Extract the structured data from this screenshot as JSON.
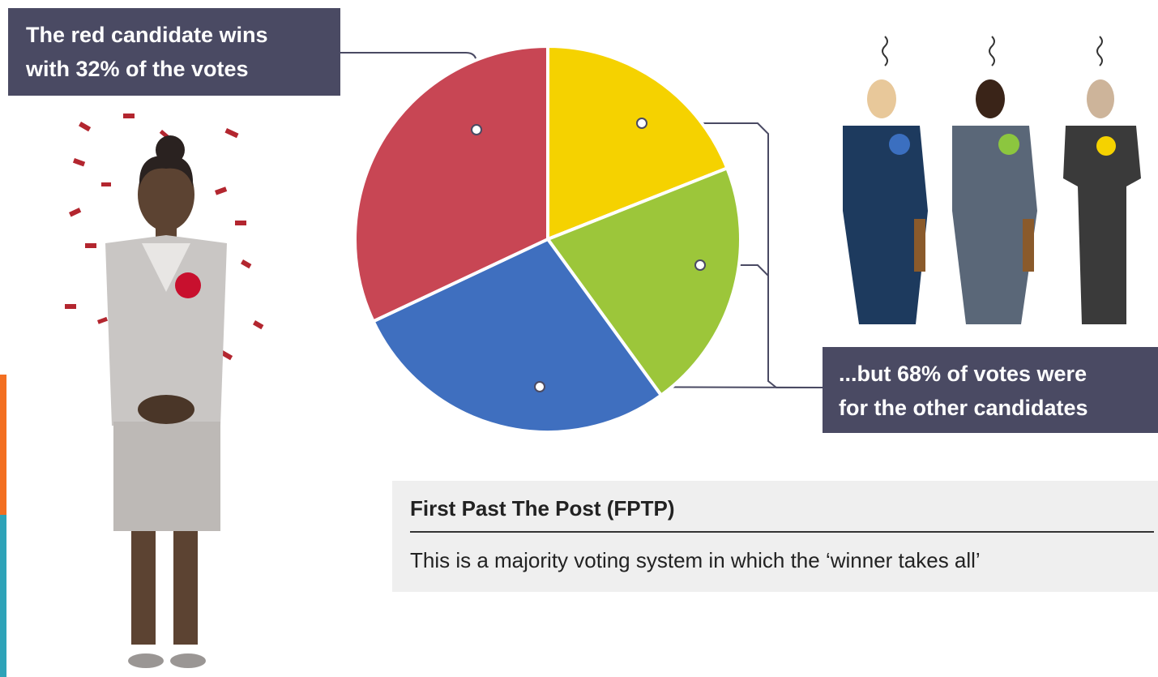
{
  "chart_data": {
    "type": "pie",
    "values": [
      19,
      21,
      28,
      32
    ],
    "colors": [
      "#f5d200",
      "#9cc63a",
      "#3f6fbf",
      "#c84654"
    ],
    "start": "top",
    "direction": "clockwise",
    "annotations": [
      {
        "lines": [
          "The red candidate wins",
          "with 32% of the votes"
        ]
      },
      {
        "lines": [
          "...but 68% of votes were",
          "for the other candidates"
        ]
      }
    ]
  },
  "definition": {
    "title": "First Past The Post (FPTP)",
    "text": "This is a majority voting system in which the ‘winner takes all’"
  }
}
